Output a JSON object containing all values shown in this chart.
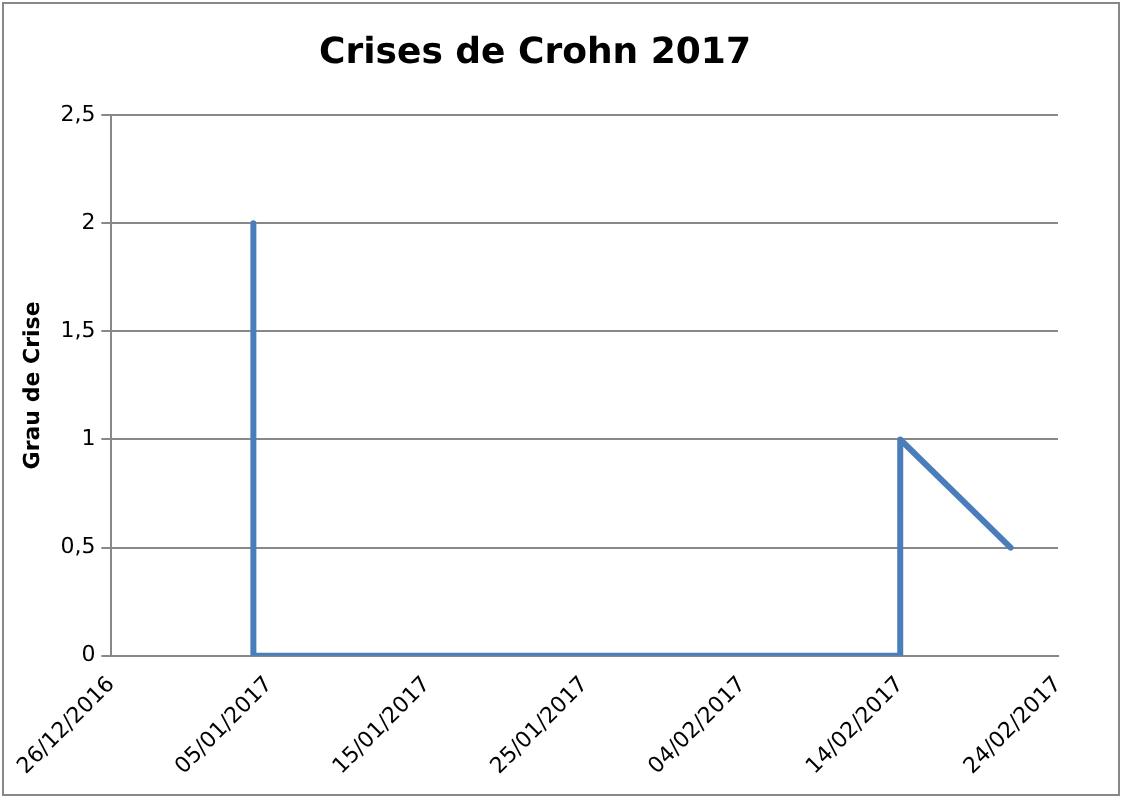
{
  "chart_data": {
    "type": "line",
    "title": "Crises de Crohn 2017",
    "ylabel": "Grau de Crise",
    "x": [
      "2017-01-04",
      "2017-01-04",
      "2017-02-14",
      "2017-02-14",
      "2017-02-21"
    ],
    "series": [
      {
        "color": "#4a7ebb",
        "values": [
          2,
          0,
          0,
          1,
          0.5
        ]
      }
    ],
    "xlim": [
      "2016-12-26",
      "2017-02-24"
    ],
    "xticks": [
      {
        "value": "2016-12-26",
        "label": "26/12/2016"
      },
      {
        "value": "2017-01-05",
        "label": "05/01/2017"
      },
      {
        "value": "2017-01-15",
        "label": "15/01/2017"
      },
      {
        "value": "2017-01-25",
        "label": "25/01/2017"
      },
      {
        "value": "2017-02-04",
        "label": "04/02/2017"
      },
      {
        "value": "2017-02-14",
        "label": "14/02/2017"
      },
      {
        "value": "2017-02-24",
        "label": "24/02/2017"
      }
    ],
    "ylim": [
      0,
      2.5
    ],
    "yticks": [
      0,
      {
        "value": 0.5,
        "label": "0,5"
      },
      1,
      {
        "value": 1.5,
        "label": "1,5"
      },
      2,
      {
        "value": 2.5,
        "label": "2,5"
      }
    ],
    "grid": "y",
    "legend": false,
    "marker": "none",
    "line_style": "solid"
  }
}
